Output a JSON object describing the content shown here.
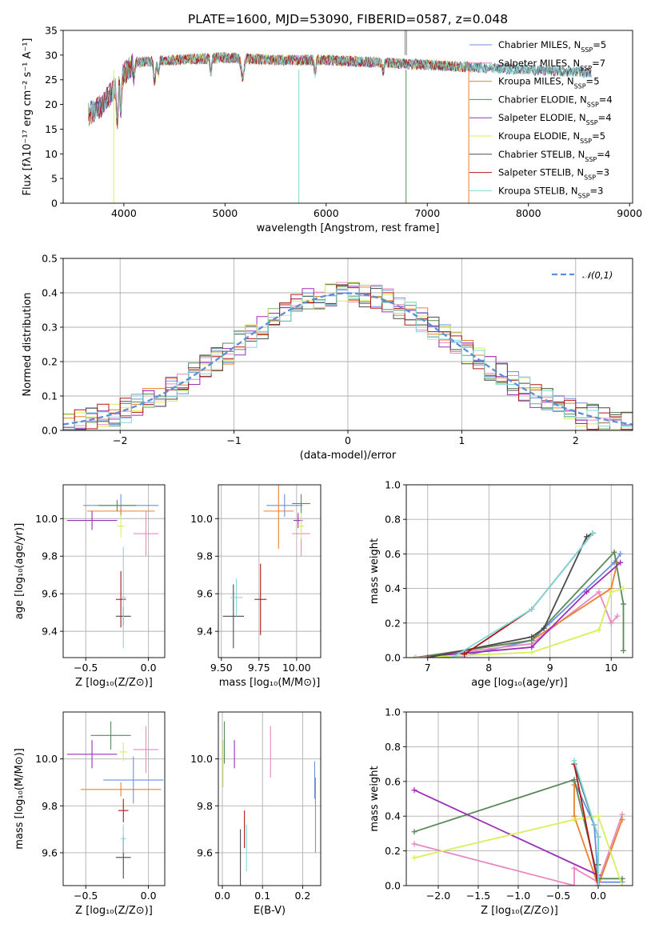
{
  "title": "PLATE=1600, MJD=53090, FIBERID=0587, z=0.048",
  "series": [
    {
      "name": "Chabrier MILES",
      "nssp": "5",
      "color": "#6b8fe0"
    },
    {
      "name": "Salpeter MILES",
      "nssp": "7",
      "color": "#e889c0"
    },
    {
      "name": "Kroupa MILES",
      "nssp": "5",
      "color": "#e8822e"
    },
    {
      "name": "Chabrier ELODIE",
      "nssp": "4",
      "color": "#5a8a5a"
    },
    {
      "name": "Salpeter ELODIE",
      "nssp": "4",
      "color": "#9b30b8"
    },
    {
      "name": "Kroupa ELODIE",
      "nssp": "5",
      "color": "#d9ef5a"
    },
    {
      "name": "Chabrier STELIB",
      "nssp": "4",
      "color": "#4a4a4a"
    },
    {
      "name": "Salpeter STELIB",
      "nssp": "3",
      "color": "#b01818"
    },
    {
      "name": "Kroupa STELIB",
      "nssp": "3",
      "color": "#7fdada"
    }
  ],
  "chart_data": [
    {
      "id": "spectrum",
      "type": "line",
      "xlabel": "wavelength [Angstrom, rest frame]",
      "ylabel": "Flux [fλ10⁻¹⁷ erg cm⁻² s⁻¹ A⁻¹]",
      "xlim": [
        3400,
        9030
      ],
      "ylim": [
        0,
        35
      ],
      "xticks": [
        "4000",
        "5000",
        "6000",
        "7000",
        "8000",
        "9000"
      ],
      "yticks": [
        "0",
        "5",
        "10",
        "15",
        "20",
        "25",
        "30",
        "35"
      ],
      "xticks_num": [
        4000,
        5000,
        6000,
        7000,
        8000,
        9000
      ],
      "yticks_num": [
        0,
        5,
        10,
        15,
        20,
        25,
        30,
        35
      ],
      "series_extent": [
        [
          3650,
          8620
        ],
        [
          3650,
          8620
        ],
        [
          3650,
          7420
        ],
        [
          3650,
          8620
        ],
        [
          3650,
          7420
        ],
        [
          3900,
          7420
        ],
        [
          3650,
          8620
        ],
        [
          3650,
          7420
        ],
        [
          3650,
          8620
        ]
      ],
      "continuum": [
        [
          3650,
          18
        ],
        [
          3800,
          20
        ],
        [
          3950,
          25
        ],
        [
          4100,
          28.5
        ],
        [
          4500,
          29
        ],
        [
          5000,
          29.5
        ],
        [
          5500,
          29
        ],
        [
          6000,
          29
        ],
        [
          6500,
          28.5
        ],
        [
          7000,
          28
        ],
        [
          7500,
          27.5
        ],
        [
          8000,
          27
        ],
        [
          8620,
          26.5
        ]
      ]
    },
    {
      "id": "residual-histogram",
      "type": "histogram",
      "xlabel": "(data-model)/error",
      "ylabel": "Normed distribution",
      "xlim": [
        -2.5,
        2.5
      ],
      "ylim": [
        0,
        0.5
      ],
      "xticks": [
        "−2",
        "−1",
        "0",
        "1",
        "2"
      ],
      "yticks": [
        "0.0",
        "0.1",
        "0.2",
        "0.3",
        "0.4",
        "0.5"
      ],
      "xticks_num": [
        -2,
        -1,
        0,
        1,
        2
      ],
      "yticks_num": [
        0,
        0.1,
        0.2,
        0.3,
        0.4,
        0.5
      ],
      "bin_width": 0.1,
      "reference_curve": {
        "label": "𝒩(0,1)",
        "mu": 0,
        "sigma": 1,
        "color": "#5b8fd8"
      }
    },
    {
      "id": "age-vs-z",
      "type": "errorbar",
      "xlabel": "Z [log₁₀(Z/Z⊙)]",
      "ylabel": "age  [log₁₀(age/yr)]",
      "xlim": [
        -0.68,
        0.13
      ],
      "ylim": [
        9.26,
        10.18
      ],
      "xticks": [
        "−0.5",
        "0.0"
      ],
      "yticks": [
        "9.4",
        "9.6",
        "9.8",
        "10.0"
      ],
      "xticks_num": [
        -0.5,
        0
      ],
      "yticks_num": [
        9.4,
        9.6,
        9.8,
        10.0
      ],
      "points": [
        {
          "s": 0,
          "x": -0.22,
          "y": 10.07,
          "xerr": 0.3,
          "yerr": 0.06
        },
        {
          "s": 1,
          "x": -0.02,
          "y": 9.92,
          "xerr": 0.1,
          "yerr": 0.12
        },
        {
          "s": 2,
          "x": -0.22,
          "y": 10.04,
          "xerr": 0.27,
          "yerr": 0.02
        },
        {
          "s": 3,
          "x": -0.25,
          "y": 10.07,
          "xerr": 0.15,
          "yerr": 0.03
        },
        {
          "s": 4,
          "x": -0.45,
          "y": 9.99,
          "xerr": 0.2,
          "yerr": 0.05
        },
        {
          "s": 5,
          "x": -0.22,
          "y": 9.96,
          "xerr": 0.03,
          "yerr": 0.06
        },
        {
          "s": 6,
          "x": -0.2,
          "y": 9.48,
          "xerr": 0.06,
          "yerr": 0.05
        },
        {
          "s": 7,
          "x": -0.22,
          "y": 9.57,
          "xerr": 0.04,
          "yerr": 0.15
        },
        {
          "s": 8,
          "x": -0.2,
          "y": 9.58,
          "xerr": 0.02,
          "yerr": 0.27
        }
      ]
    },
    {
      "id": "age-vs-mass",
      "type": "errorbar",
      "xlabel": "mass [log₁₀(M/M⊙)]",
      "ylabel": "",
      "xlim": [
        9.48,
        10.16
      ],
      "ylim": [
        9.26,
        10.18
      ],
      "xticks": [
        "9.50",
        "9.75",
        "10.00"
      ],
      "yticks": [
        "9.4",
        "9.6",
        "9.8",
        "10.0"
      ],
      "xticks_num": [
        9.5,
        9.75,
        10.0
      ],
      "yticks_num": [
        9.4,
        9.6,
        9.8,
        10.0
      ],
      "points": [
        {
          "s": 0,
          "x": 9.92,
          "y": 10.07,
          "xerr": 0.12,
          "yerr": 0.06
        },
        {
          "s": 1,
          "x": 10.03,
          "y": 9.92,
          "xerr": 0.06,
          "yerr": 0.12
        },
        {
          "s": 2,
          "x": 9.88,
          "y": 10.04,
          "xerr": 0.1,
          "yerr": 0.2
        },
        {
          "s": 3,
          "x": 10.03,
          "y": 10.08,
          "xerr": 0.06,
          "yerr": 0.05
        },
        {
          "s": 4,
          "x": 10.01,
          "y": 9.99,
          "xerr": 0.03,
          "yerr": 0.04
        },
        {
          "s": 5,
          "x": 10.03,
          "y": 9.96,
          "xerr": 0.02,
          "yerr": 0.07
        },
        {
          "s": 6,
          "x": 9.58,
          "y": 9.48,
          "xerr": 0.07,
          "yerr": 0.17
        },
        {
          "s": 7,
          "x": 9.76,
          "y": 9.57,
          "xerr": 0.04,
          "yerr": 0.19
        },
        {
          "s": 8,
          "x": 9.6,
          "y": 9.58,
          "xerr": 0.04,
          "yerr": 0.1
        }
      ]
    },
    {
      "id": "mass-weight-vs-age",
      "type": "line",
      "xlabel": "age  [log₁₀(age/yr)]",
      "ylabel": "mass weight",
      "xlim": [
        6.65,
        10.35
      ],
      "ylim": [
        0,
        1.0
      ],
      "xticks": [
        "7",
        "8",
        "9",
        "10"
      ],
      "yticks": [
        "0.0",
        "0.2",
        "0.4",
        "0.6",
        "0.8",
        "1.0"
      ],
      "xticks_num": [
        7,
        8,
        9,
        10
      ],
      "yticks_num": [
        0,
        0.2,
        0.4,
        0.6,
        0.8,
        1.0
      ],
      "lines": [
        {
          "s": 0,
          "points": [
            [
              6.8,
              0.0
            ],
            [
              7.6,
              0.01
            ],
            [
              8.7,
              0.1
            ],
            [
              10.05,
              0.55
            ],
            [
              10.15,
              0.6
            ]
          ]
        },
        {
          "s": 1,
          "points": [
            [
              6.8,
              0.0
            ],
            [
              8.7,
              0.08
            ],
            [
              9.8,
              0.38
            ],
            [
              10.0,
              0.2
            ],
            [
              10.1,
              0.24
            ]
          ]
        },
        {
          "s": 2,
          "points": [
            [
              6.8,
              0.0
            ],
            [
              8.7,
              0.1
            ],
            [
              10.0,
              0.4
            ],
            [
              10.1,
              0.55
            ]
          ]
        },
        {
          "s": 3,
          "points": [
            [
              6.8,
              0.0
            ],
            [
              8.7,
              0.1
            ],
            [
              10.05,
              0.61
            ],
            [
              10.2,
              0.31
            ],
            [
              10.2,
              0.04
            ]
          ]
        },
        {
          "s": 4,
          "points": [
            [
              6.8,
              0.0
            ],
            [
              8.7,
              0.06
            ],
            [
              9.6,
              0.38
            ],
            [
              10.15,
              0.55
            ]
          ]
        },
        {
          "s": 5,
          "points": [
            [
              6.8,
              0.0
            ],
            [
              8.7,
              0.03
            ],
            [
              9.8,
              0.16
            ],
            [
              10.0,
              0.38
            ],
            [
              10.2,
              0.4
            ]
          ]
        },
        {
          "s": 6,
          "points": [
            [
              7.0,
              0.0
            ],
            [
              8.7,
              0.12
            ],
            [
              8.9,
              0.17
            ],
            [
              9.6,
              0.7
            ],
            [
              9.7,
              0.72
            ]
          ]
        },
        {
          "s": 7,
          "points": [
            [
              7.6,
              0.02
            ],
            [
              8.7,
              0.28
            ],
            [
              9.7,
              0.72
            ]
          ]
        },
        {
          "s": 8,
          "points": [
            [
              7.4,
              0.0
            ],
            [
              8.7,
              0.28
            ],
            [
              9.7,
              0.72
            ]
          ]
        }
      ]
    },
    {
      "id": "mass-vs-z",
      "type": "errorbar",
      "xlabel": "Z [log₁₀(Z/Z⊙)]",
      "ylabel": "mass [log₁₀(M/M⊙)]",
      "xlim": [
        -0.68,
        0.13
      ],
      "ylim": [
        9.46,
        10.2
      ],
      "xticks": [
        "−0.5",
        "0.0"
      ],
      "yticks": [
        "9.6",
        "9.8",
        "10.0"
      ],
      "xticks_num": [
        -0.5,
        0
      ],
      "yticks_num": [
        9.6,
        9.8,
        10.0
      ],
      "points": [
        {
          "s": 0,
          "x": -0.12,
          "y": 9.91,
          "xerr": 0.24,
          "yerr": 0.1
        },
        {
          "s": 1,
          "x": -0.02,
          "y": 10.04,
          "xerr": 0.1,
          "yerr": 0.1
        },
        {
          "s": 2,
          "x": -0.22,
          "y": 9.87,
          "xerr": 0.32,
          "yerr": 0.03
        },
        {
          "s": 3,
          "x": -0.3,
          "y": 10.1,
          "xerr": 0.16,
          "yerr": 0.06
        },
        {
          "s": 4,
          "x": -0.45,
          "y": 10.02,
          "xerr": 0.2,
          "yerr": 0.06
        },
        {
          "s": 5,
          "x": -0.2,
          "y": 10.03,
          "xerr": 0.03,
          "yerr": 0.04
        },
        {
          "s": 6,
          "x": -0.2,
          "y": 9.58,
          "xerr": 0.06,
          "yerr": 0.09
        },
        {
          "s": 7,
          "x": -0.2,
          "y": 9.78,
          "xerr": 0.04,
          "yerr": 0.05
        },
        {
          "s": 8,
          "x": -0.2,
          "y": 9.66,
          "xerr": 0.02,
          "yerr": 0.06
        }
      ]
    },
    {
      "id": "mass-vs-ebv",
      "type": "errorbar",
      "xlabel": "E(B-V)",
      "ylabel": "",
      "xlim": [
        -0.01,
        0.245
      ],
      "ylim": [
        9.46,
        10.2
      ],
      "xticks": [
        "0.0",
        "0.1",
        "0.2"
      ],
      "yticks": [
        "9.6",
        "9.8",
        "10.0"
      ],
      "xticks_num": [
        0,
        0.1,
        0.2
      ],
      "yticks_num": [
        9.6,
        9.8,
        10.0
      ],
      "points": [
        {
          "s": 0,
          "x": 0.23,
          "y": 9.91,
          "xerr": 0,
          "yerr": 0.08
        },
        {
          "s": 1,
          "x": 0.12,
          "y": 10.03,
          "xerr": 0,
          "yerr": 0.11
        },
        {
          "s": 2,
          "x": 0.232,
          "y": 9.76,
          "xerr": 0,
          "yerr": 0.16
        },
        {
          "s": 3,
          "x": 0.005,
          "y": 10.07,
          "xerr": 0,
          "yerr": 0.09
        },
        {
          "s": 4,
          "x": 0.03,
          "y": 10.02,
          "xerr": 0,
          "yerr": 0.06
        },
        {
          "s": 5,
          "x": 0.002,
          "y": 9.98,
          "xerr": 0,
          "yerr": 0.1
        },
        {
          "s": 6,
          "x": 0.045,
          "y": 9.58,
          "xerr": 0,
          "yerr": 0.12
        },
        {
          "s": 7,
          "x": 0.055,
          "y": 9.7,
          "xerr": 0,
          "yerr": 0.08
        },
        {
          "s": 8,
          "x": 0.06,
          "y": 9.62,
          "xerr": 0,
          "yerr": 0.1
        }
      ]
    },
    {
      "id": "mass-weight-vs-z",
      "type": "line",
      "xlabel": "Z [log₁₀(Z/Z⊙)]",
      "ylabel": "mass weight",
      "xlim": [
        -2.4,
        0.43
      ],
      "ylim": [
        0,
        1.0
      ],
      "xticks": [
        "−2.0",
        "−1.5",
        "−1.0",
        "−0.5",
        "0.0"
      ],
      "yticks": [
        "0.0",
        "0.2",
        "0.4",
        "0.6",
        "0.8",
        "1.0"
      ],
      "xticks_num": [
        -2.0,
        -1.5,
        -1.0,
        -0.5,
        0
      ],
      "yticks_num": [
        0,
        0.2,
        0.4,
        0.6,
        0.8,
        1.0
      ],
      "lines": [
        {
          "s": 0,
          "points": [
            [
              -0.3,
              0.6
            ],
            [
              -0.05,
              0.35
            ],
            [
              0.0,
              0.02
            ],
            [
              0.3,
              0.02
            ]
          ]
        },
        {
          "s": 1,
          "points": [
            [
              -2.3,
              0.24
            ],
            [
              -0.3,
              0.0
            ],
            [
              -0.3,
              0.1
            ],
            [
              0.0,
              0.02
            ],
            [
              0.3,
              0.41
            ]
          ]
        },
        {
          "s": 2,
          "points": [
            [
              -0.3,
              0.58
            ],
            [
              -0.3,
              0.4
            ],
            [
              0.0,
              0.0
            ],
            [
              0.3,
              0.38
            ]
          ]
        },
        {
          "s": 3,
          "points": [
            [
              -2.3,
              0.31
            ],
            [
              -0.3,
              0.61
            ],
            [
              0.0,
              0.04
            ],
            [
              0.3,
              0.04
            ]
          ]
        },
        {
          "s": 4,
          "points": [
            [
              -2.3,
              0.55
            ],
            [
              0.0,
              0.06
            ]
          ]
        },
        {
          "s": 5,
          "points": [
            [
              -2.3,
              0.16
            ],
            [
              -0.3,
              0.38
            ],
            [
              0.0,
              0.4
            ],
            [
              0.3,
              0.0
            ]
          ]
        },
        {
          "s": 6,
          "points": [
            [
              -0.3,
              0.7
            ],
            [
              0.0,
              0.28
            ],
            [
              0.0,
              0.12
            ]
          ]
        },
        {
          "s": 7,
          "points": [
            [
              -0.3,
              0.7
            ],
            [
              0.0,
              0.0
            ]
          ]
        },
        {
          "s": 8,
          "points": [
            [
              -0.3,
              0.72
            ],
            [
              0.0,
              0.28
            ],
            [
              0.0,
              0.0
            ]
          ]
        }
      ]
    }
  ]
}
